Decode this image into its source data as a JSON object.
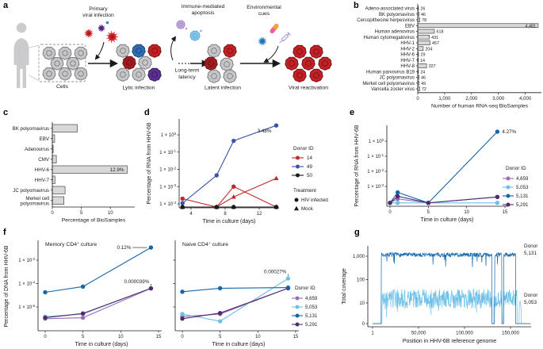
{
  "panels": {
    "a": "a",
    "b": "b",
    "c": "c",
    "d": "d",
    "e": "e",
    "f": "f",
    "g": "g"
  },
  "colors": {
    "text": "#1a1a1a",
    "axis": "#1a1a1a",
    "bar_fill": "#d8d8d8",
    "bar_stroke": "#4a4a4a",
    "red": "#c0282d",
    "blue": "#3a54a8",
    "black": "#1a1a1a",
    "donor_4659": "#9c6bb3",
    "donor_5053": "#6cc0e8",
    "donor_5131": "#1465a9",
    "donor_5291": "#512a6e",
    "cell_gray": "#c6c6c8",
    "cell_gray_stroke": "#737377",
    "cell_red": "#c32026",
    "cell_red_stroke": "#6d1113",
    "cell_darkred": "#9e1c20",
    "cell_blue": "#2e6db4",
    "cell_blue_stroke": "#1a3f6e",
    "cell_purple": "#5c2e91",
    "cell_purple_stroke": "#33194f",
    "cell_lightpurple": "#c5a8dd",
    "cell_lightblue": "#85c7ec",
    "virus_red": "#d5232b",
    "virus_purple": "#5c2e91",
    "virus_blue": "#2e86c8",
    "pill_orange": "#f5a13d",
    "pill_pink": "#ef5f98",
    "syringe": "#9b8fd1",
    "person": "#cbcbce",
    "box_dash": "#949498"
  },
  "panel_a": {
    "labels": {
      "cells": "Cells",
      "primary": [
        "Primary",
        "viral infection"
      ],
      "lytic": "Lytic infection",
      "apoptosis": [
        "Immune-mediated",
        "apoptosis"
      ],
      "latency": [
        "Long-term",
        "latency"
      ],
      "latent": "Latent infection",
      "cues": [
        "Environmental",
        "cues"
      ],
      "reactivation": "Viral reactivation"
    },
    "clusters": {
      "box": [
        "gray",
        "gray",
        "gray",
        "gray",
        "gray",
        "gray",
        "gray",
        "gray"
      ],
      "lytic": [
        "gray",
        "blue",
        "red",
        "darkred",
        "gray",
        "gray",
        "gray",
        "purple"
      ],
      "latent": [
        "gray",
        "red",
        "darkred",
        "gray",
        "gray",
        "gray"
      ],
      "reactivation": [
        "red",
        "red",
        "red",
        "red",
        "red",
        "red",
        "red"
      ],
      "apoptosis": [
        "lightpurple",
        "lightblue"
      ]
    }
  },
  "chart_data": [
    {
      "id": "b",
      "type": "bar",
      "orientation": "horizontal",
      "categories": [
        "Adeno-associated virus",
        "BK polyomavirus",
        "Cercopithecine herpesvirus",
        "EBV",
        "Human adenovirus",
        "Human cytomegalovirus",
        "HHV-1",
        "HHV-2",
        "HHV-6",
        "HHV-7",
        "HHV-8",
        "Human parvovirus B19",
        "JC polyomavirus",
        "Merkel cell polyomavirus",
        "Varicella zoster virus"
      ],
      "values": [
        26,
        46,
        78,
        4481,
        618,
        431,
        457,
        204,
        29,
        14,
        327,
        24,
        46,
        49,
        72
      ],
      "value_labels": [
        "26",
        "46",
        "78",
        "4,481",
        "618",
        "431",
        "457",
        "204",
        "29",
        "14",
        "327",
        "24",
        "46",
        "49",
        "72"
      ],
      "inside_label_index": 3,
      "xlabel": "Number of human RNA-seq BioSamples",
      "xticks": [
        0,
        1000,
        2000,
        3000,
        4000
      ],
      "xtick_labels": [
        "0",
        "1,000",
        "2,000",
        "3,000",
        "4,000"
      ],
      "xlim": [
        0,
        4600
      ]
    },
    {
      "id": "c",
      "type": "bar",
      "orientation": "horizontal",
      "categories": [
        "BK polyomavirus",
        "EBV",
        "Adenovirus",
        "CMV",
        "HHV-6",
        "HHV-7",
        "JC polyomavirus",
        "Merkel cell\npolyomavirus"
      ],
      "values": [
        4.3,
        0.4,
        0.15,
        0.7,
        12.9,
        0.45,
        2.2,
        2.0
      ],
      "value_labels": null,
      "annotation": {
        "text": "12.9%",
        "category_index": 4
      },
      "xlabel": "Percentage of BioSamples",
      "xticks": [
        0,
        5,
        10
      ],
      "xtick_labels": [
        "0",
        "5",
        "10"
      ],
      "xlim": [
        0,
        14.2
      ]
    },
    {
      "id": "d",
      "type": "line",
      "yscale": "log",
      "ylabel": "Percentage of RNA from HHV-6B",
      "xlabel": "Time in culture (days)",
      "xticks": [
        4,
        8,
        12
      ],
      "ytick_labels": [
        "1 × 10⁰",
        "1 × 10⁻¹",
        "1 × 10⁻²",
        "1 × 10⁻³",
        "1 × 10⁻⁴"
      ],
      "ytick_values": [
        1,
        0.1,
        0.01,
        0.001,
        0.0001
      ],
      "x": [
        3,
        7,
        9,
        14
      ],
      "series": [
        {
          "name": "Donor 14 HIV infected",
          "color_key": "red",
          "marker": "circle",
          "values": [
            0.0002,
            6.5e-05,
            0.001,
            6.5e-05
          ]
        },
        {
          "name": "Donor 14 Mock",
          "color_key": "red",
          "marker": "triangle",
          "values": [
            6.5e-05,
            6.5e-05,
            0.00025,
            0.003
          ]
        },
        {
          "name": "Donor 49 HIV infected",
          "color_key": "blue",
          "marker": "circle",
          "values": [
            0.00011,
            0.0045,
            0.45,
            3.48
          ]
        },
        {
          "name": "Donor 50 HIV infected",
          "color_key": "black",
          "marker": "circle",
          "values": [
            6.5e-05,
            6.5e-05,
            6.5e-05,
            6.5e-05
          ]
        },
        {
          "name": "Donor 50 Mock",
          "color_key": "black",
          "marker": "triangle",
          "values": [
            6.5e-05,
            6.5e-05,
            6.5e-05,
            6.5e-05
          ]
        }
      ],
      "annotation": {
        "text": "3.48%",
        "x": 14,
        "y": 3.48,
        "placement": "below-left"
      },
      "legend": {
        "donor_title": "Donor ID",
        "donors": [
          {
            "label": "14",
            "color_key": "red"
          },
          {
            "label": "49",
            "color_key": "blue"
          },
          {
            "label": "50",
            "color_key": "black"
          }
        ],
        "treatment_title": "Treatment",
        "treatments": [
          {
            "label": "HIV infected",
            "marker": "circle"
          },
          {
            "label": "Mock",
            "marker": "triangle"
          }
        ]
      }
    },
    {
      "id": "e",
      "type": "line",
      "yscale": "log",
      "ylabel": "Percentage of RNA from HHV-6B",
      "xlabel": "Time in culture (days)",
      "xticks": [
        0,
        5,
        10,
        15
      ],
      "ytick_labels": [
        "1 × 10⁰",
        "1 × 10⁻¹",
        "1 × 10⁻²",
        "1 × 10⁻³"
      ],
      "ytick_values": [
        1,
        0.1,
        0.01,
        0.001
      ],
      "x": [
        0,
        1,
        5,
        14
      ],
      "series": [
        {
          "name": "4,659",
          "color_key": "donor_4659",
          "marker": "circle",
          "values": [
            8e-05,
            0.00015,
            8e-05,
            0.0002
          ]
        },
        {
          "name": "5,053",
          "color_key": "donor_5053",
          "marker": "circle",
          "values": [
            8e-05,
            8e-05,
            8e-05,
            8e-05
          ]
        },
        {
          "name": "5,131",
          "color_key": "donor_5131",
          "marker": "circle",
          "values": [
            8e-05,
            0.0004,
            8e-05,
            4.27
          ]
        },
        {
          "name": "5,291",
          "color_key": "donor_5291",
          "marker": "circle",
          "values": [
            8e-05,
            0.00022,
            8e-05,
            0.0002
          ]
        }
      ],
      "annotation": {
        "text": "4.27%",
        "x": 14,
        "y": 4.27,
        "placement": "right"
      },
      "legend": {
        "donor_title": "Donor ID",
        "donors": [
          {
            "label": "4,659",
            "color_key": "donor_4659"
          },
          {
            "label": "5,053",
            "color_key": "donor_5053"
          },
          {
            "label": "5,131",
            "color_key": "donor_5131"
          },
          {
            "label": "5,291",
            "color_key": "donor_5291"
          }
        ]
      }
    },
    {
      "id": "f",
      "type": "line-pair",
      "yscale": "log",
      "ylabel": "Percentage of DNA from HHV-6B",
      "xlabel": "Time in culture (days)",
      "xticks": [
        0,
        5,
        10,
        15
      ],
      "ytick_labels": [
        "1 × 10⁻²",
        "1 × 10⁻⁴",
        "1 × 10⁻⁶"
      ],
      "ytick_values": [
        0.01,
        0.0001,
        1e-06
      ],
      "x": [
        0,
        5,
        14
      ],
      "subplots": [
        {
          "title": "Memory CD4⁺ culture",
          "series": [
            {
              "name": "4,659",
              "color_key": "donor_4659",
              "marker": "circle",
              "values": [
                1e-07,
                1.2e-07,
                3.9e-05
              ]
            },
            {
              "name": "5,053",
              "color_key": "donor_5053",
              "marker": "circle",
              "values": [
                1.5e-07,
                2.5e-07,
                3.9e-05
              ]
            },
            {
              "name": "5,291",
              "color_key": "donor_5291",
              "marker": "circle",
              "values": [
                1.2e-07,
                2.8e-07,
                3.9e-05
              ]
            },
            {
              "name": "5,131",
              "color_key": "donor_5131",
              "marker": "circle",
              "values": [
                1.8e-05,
                5.5e-05,
                0.12
              ]
            }
          ],
          "annotations": [
            {
              "text": "0.12%",
              "x": 14,
              "y": 0.12,
              "placement": "dash-left"
            },
            {
              "text": "0.000039%",
              "x": 14,
              "y": 3.9e-05,
              "placement": "above"
            }
          ]
        },
        {
          "title": "Naive CD4⁺ culture",
          "series": [
            {
              "name": "4,659",
              "color_key": "donor_4659",
              "marker": "circle",
              "values": [
                1.5e-07,
                2.5e-07,
                4e-05
              ]
            },
            {
              "name": "5,053",
              "color_key": "donor_5053",
              "marker": "circle",
              "values": [
                2.5e-07,
                6e-08,
                0.00027
              ]
            },
            {
              "name": "5,291",
              "color_key": "donor_5291",
              "marker": "circle",
              "values": [
                1e-07,
                3e-07,
                4e-05
              ]
            },
            {
              "name": "5,131",
              "color_key": "donor_5131",
              "marker": "circle",
              "values": [
                2e-05,
                4e-05,
                4.5e-05
              ]
            }
          ],
          "annotations": [
            {
              "text": "0.00027%",
              "x": 14,
              "y": 0.00027,
              "placement": "above"
            }
          ]
        }
      ],
      "legend": {
        "donor_title": "Donor ID",
        "donors": [
          {
            "label": "4,659",
            "color_key": "donor_4659"
          },
          {
            "label": "5,053",
            "color_key": "donor_5053"
          },
          {
            "label": "5,131",
            "color_key": "donor_5131"
          },
          {
            "label": "5,291",
            "color_key": "donor_5291"
          }
        ]
      }
    },
    {
      "id": "g",
      "type": "coverage",
      "ylabel": "Total coverage",
      "xlabel": "Position in HHV-6B reference genome",
      "ytick_labels": [
        "0",
        "10",
        "100",
        "1,000"
      ],
      "ytick_values": [
        0,
        10,
        100,
        1000
      ],
      "xtick_labels": [
        "1",
        "50,000",
        "100,000",
        "150,000"
      ],
      "xtick_values": [
        1,
        50000,
        100000,
        150000
      ],
      "xlim": [
        1,
        172000
      ],
      "series": [
        {
          "name": "Donor 5,131",
          "label_lines": [
            "Donor",
            "5,131"
          ],
          "color_key": "donor_5131",
          "baseline": 1150,
          "noise_decades": 0.09,
          "start": 9500,
          "end": 155500,
          "gaps": [
            [
              129800,
              132800
            ],
            [
              140600,
              142600
            ]
          ],
          "seed": 7
        },
        {
          "name": "Donor 5,053",
          "label_lines": [
            "Donor",
            "5,053"
          ],
          "color_key": "donor_5053",
          "baseline": 15,
          "noise_decades": 0.42,
          "start": 10500,
          "end": 157000,
          "gaps": [
            [
              129800,
              131800
            ],
            [
              140800,
              142400
            ]
          ],
          "blip": [
            159500,
            161500,
            8
          ],
          "seed": 3
        }
      ]
    }
  ]
}
